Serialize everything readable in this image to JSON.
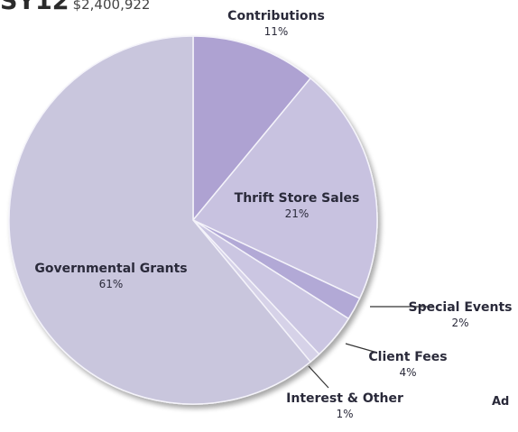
{
  "header": {
    "prefix": "SY12",
    "amount": "$2,400,922"
  },
  "clipped_label": "Ad",
  "chart_data": {
    "type": "pie",
    "title": "",
    "start_angle_deg": 0,
    "direction": "clockwise",
    "slices": [
      {
        "name": "Contributions",
        "value_label": "11%",
        "value": 11,
        "color": "#aea2d2"
      },
      {
        "name": "Thrift Store Sales",
        "value_label": "21%",
        "value": 21,
        "color": "#c8c2e0"
      },
      {
        "name": "Special Events",
        "value_label": "2%",
        "value": 2,
        "color": "#b2a9d6"
      },
      {
        "name": "Client Fees",
        "value_label": "4%",
        "value": 4,
        "color": "#cbc6e2"
      },
      {
        "name": "Interest & Other",
        "value_label": "1%",
        "value": 1,
        "color": "#d6d2e8"
      },
      {
        "name": "Governmental Grants",
        "value_label": "61%",
        "value": 61,
        "color": "#c9c6dd"
      }
    ]
  }
}
